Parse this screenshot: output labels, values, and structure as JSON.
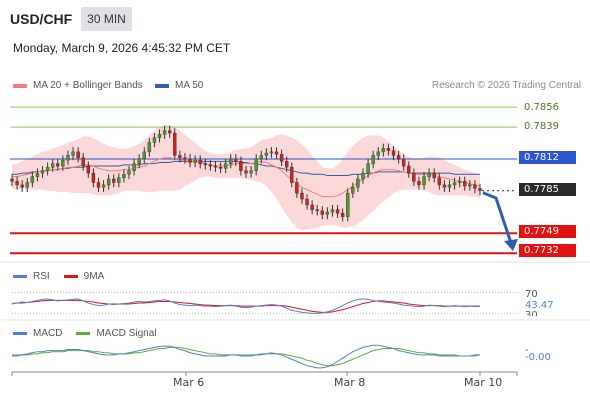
{
  "header": {
    "symbol": "USD/CHF",
    "interval": "30 MIN",
    "datetime": "Monday, March 9, 2026 4:45:32 PM CET"
  },
  "legend": {
    "ma20_label": "MA 20 + Bollinger Bands",
    "ma50_label": "MA 50",
    "credit": "Research © 2026 Trading Central"
  },
  "colors": {
    "ma20": "#f47c7c",
    "ma50": "#2f5fa8",
    "bollinger_fill": "#fbd9d9",
    "bull_candle": "#4c9a2a",
    "bear_candle": "#d21f1f",
    "resistance": "#8ec45e",
    "pivot": "#2b55d1",
    "support": "#e31212",
    "current": "#2a2a2a",
    "rsi": "#4f7fd6",
    "rsi_ma": "#e31212",
    "macd": "#4f7fd6",
    "macd_signal": "#5cb030",
    "arrow": "#2f5fa8"
  },
  "levels": [
    {
      "name": "resistance-2",
      "value": "0.7856",
      "style": "plain"
    },
    {
      "name": "resistance-1",
      "value": "0.7839",
      "style": "plain"
    },
    {
      "name": "pivot",
      "value": "0.7812",
      "style": "blue"
    },
    {
      "name": "current",
      "value": "0.7785",
      "style": "dark"
    },
    {
      "name": "support-1",
      "value": "0.7749",
      "style": "red"
    },
    {
      "name": "support-2",
      "value": "0.7732",
      "style": "red"
    }
  ],
  "rsi_panel": {
    "rsi_label": "RSI",
    "ma_label": "9MA",
    "level_70": "70",
    "value": "43.47",
    "level_30": "30"
  },
  "macd_panel": {
    "macd_label": "MACD",
    "signal_label": "MACD Signal",
    "zero_mark": "-",
    "value": "-0.00"
  },
  "x_axis": {
    "dates": [
      "Mar 6",
      "Mar 8",
      "Mar 10"
    ]
  },
  "chart_data": {
    "type": "candlestick",
    "title": "USD/CHF",
    "interval": "30 MIN",
    "y_range": [
      0.7728,
      0.7862
    ],
    "x_ticks": [
      "Mar 6",
      "Mar 8",
      "Mar 10"
    ],
    "closes": [
      0.7793,
      0.779,
      0.7788,
      0.7792,
      0.7797,
      0.78,
      0.7802,
      0.7805,
      0.7808,
      0.7806,
      0.7811,
      0.7815,
      0.7818,
      0.7813,
      0.7806,
      0.78,
      0.7792,
      0.7788,
      0.779,
      0.7795,
      0.7792,
      0.7796,
      0.7799,
      0.7802,
      0.7808,
      0.7812,
      0.7818,
      0.7826,
      0.783,
      0.7833,
      0.7836,
      0.7834,
      0.7815,
      0.7813,
      0.7812,
      0.7809,
      0.7811,
      0.7808,
      0.7807,
      0.7806,
      0.7805,
      0.7804,
      0.7808,
      0.7812,
      0.781,
      0.7802,
      0.78,
      0.7802,
      0.7812,
      0.7815,
      0.7817,
      0.7818,
      0.7816,
      0.781,
      0.7805,
      0.7792,
      0.7783,
      0.7778,
      0.7773,
      0.7769,
      0.7768,
      0.7765,
      0.7767,
      0.7769,
      0.7766,
      0.7763,
      0.7783,
      0.7788,
      0.7795,
      0.78,
      0.7808,
      0.7815,
      0.7818,
      0.7821,
      0.7819,
      0.7815,
      0.7812,
      0.7806,
      0.78,
      0.7793,
      0.779,
      0.7797,
      0.78,
      0.7796,
      0.779,
      0.7788,
      0.779,
      0.7792,
      0.7793,
      0.7789,
      0.779,
      0.7787,
      0.7785
    ],
    "ma20": [
      0.7797,
      0.7797,
      0.7798,
      0.7799,
      0.78,
      0.7801,
      0.7802,
      0.7802,
      0.7803,
      0.7803,
      0.7804,
      0.7805,
      0.7805,
      0.7806,
      0.7807,
      0.7807,
      0.7806,
      0.7804,
      0.7803,
      0.7802,
      0.7802,
      0.7802,
      0.7803,
      0.7803,
      0.7804,
      0.7805,
      0.7806,
      0.7808,
      0.781,
      0.7812,
      0.7813,
      0.7813,
      0.7812,
      0.7811,
      0.7811,
      0.781,
      0.781,
      0.7809,
      0.7808,
      0.7807,
      0.7806,
      0.7806,
      0.7806,
      0.7807,
      0.7808,
      0.7808,
      0.7808,
      0.7808,
      0.7809,
      0.781,
      0.7809,
      0.7807,
      0.7805,
      0.7802,
      0.7798,
      0.7794,
      0.7791,
      0.7788,
      0.7786,
      0.7784,
      0.7782,
      0.778,
      0.778,
      0.778,
      0.7781,
      0.7783,
      0.7786,
      0.7789,
      0.7792,
      0.7795,
      0.7798,
      0.78,
      0.7802,
      0.7803,
      0.7803,
      0.7803,
      0.7802,
      0.7801,
      0.78,
      0.7799,
      0.7799,
      0.7799,
      0.7799,
      0.7798,
      0.7797,
      0.7796,
      0.7795,
      0.7794,
      0.7793,
      0.7792,
      0.7791,
      0.779,
      0.7789
    ],
    "ma50": [
      0.7799,
      0.7799,
      0.78,
      0.78,
      0.7801,
      0.7801,
      0.7802,
      0.7802,
      0.7803,
      0.7803,
      0.7804,
      0.7804,
      0.7805,
      0.7805,
      0.7805,
      0.7806,
      0.7806,
      0.7806,
      0.7806,
      0.7806,
      0.7806,
      0.7806,
      0.7807,
      0.7807,
      0.7807,
      0.7807,
      0.7808,
      0.7808,
      0.7808,
      0.7809,
      0.7809,
      0.7809,
      0.781,
      0.781,
      0.781,
      0.781,
      0.781,
      0.781,
      0.781,
      0.781,
      0.781,
      0.781,
      0.781,
      0.781,
      0.781,
      0.7809,
      0.7809,
      0.7808,
      0.7808,
      0.7807,
      0.7806,
      0.7806,
      0.7805,
      0.7804,
      0.7803,
      0.7802,
      0.7801,
      0.78,
      0.78,
      0.7799,
      0.7799,
      0.7799,
      0.7798,
      0.7798,
      0.7798,
      0.7798,
      0.7798,
      0.7799,
      0.7799,
      0.7799,
      0.78,
      0.78,
      0.7801,
      0.7801,
      0.7801,
      0.7801,
      0.7801,
      0.7801,
      0.78,
      0.78,
      0.78,
      0.78,
      0.78,
      0.78,
      0.78,
      0.78,
      0.78,
      0.7799,
      0.7799,
      0.7799,
      0.7799,
      0.7799,
      0.7799
    ],
    "bb_half_width": [
      0.001,
      0.0011,
      0.0012,
      0.0013,
      0.0014,
      0.0015,
      0.0016,
      0.0017,
      0.0018,
      0.0019,
      0.002,
      0.0021,
      0.0022,
      0.0023,
      0.0024,
      0.0024,
      0.0024,
      0.0023,
      0.0022,
      0.0021,
      0.002,
      0.0019,
      0.0018,
      0.0018,
      0.0019,
      0.002,
      0.0022,
      0.0024,
      0.0026,
      0.0027,
      0.0028,
      0.0028,
      0.0027,
      0.0025,
      0.0022,
      0.0019,
      0.0016,
      0.0013,
      0.0011,
      0.001,
      0.001,
      0.001,
      0.001,
      0.0011,
      0.0012,
      0.0012,
      0.0013,
      0.0014,
      0.0016,
      0.0018,
      0.002,
      0.0023,
      0.0027,
      0.0031,
      0.0034,
      0.0036,
      0.0037,
      0.0036,
      0.0034,
      0.0031,
      0.0028,
      0.0025,
      0.0024,
      0.0024,
      0.0026,
      0.0029,
      0.0032,
      0.0034,
      0.0035,
      0.0035,
      0.0034,
      0.0032,
      0.003,
      0.0027,
      0.0024,
      0.002,
      0.0017,
      0.0015,
      0.0014,
      0.0013,
      0.0013,
      0.0014,
      0.0015,
      0.0016,
      0.0016,
      0.0015,
      0.0014,
      0.0013,
      0.0012,
      0.0011,
      0.0011,
      0.001,
      0.001
    ],
    "rsi": [
      48,
      50,
      52,
      51,
      53,
      55,
      57,
      58,
      56,
      54,
      55,
      56,
      57,
      58,
      54,
      50,
      47,
      45,
      46,
      48,
      47,
      48,
      49,
      50,
      52,
      53,
      52,
      53,
      54,
      55,
      56,
      54,
      50,
      47,
      46,
      45,
      46,
      45,
      44,
      44,
      43,
      44,
      45,
      46,
      44,
      42,
      41,
      42,
      44,
      45,
      46,
      47,
      46,
      44,
      40,
      36,
      34,
      32,
      31,
      30,
      30,
      31,
      33,
      36,
      40,
      45,
      50,
      54,
      57,
      58,
      57,
      55,
      53,
      52,
      51,
      50,
      48,
      46,
      45,
      44,
      43,
      44,
      46,
      45,
      44,
      43,
      44,
      45,
      44,
      43,
      44,
      43,
      43.47
    ],
    "rsi_ma": [
      49,
      50,
      50,
      51,
      52,
      53,
      54,
      55,
      55,
      55,
      55,
      55,
      55,
      55,
      54,
      53,
      52,
      50,
      49,
      48,
      48,
      48,
      48,
      48,
      49,
      50,
      50,
      51,
      52,
      53,
      53,
      53,
      52,
      51,
      50,
      49,
      48,
      47,
      46,
      46,
      45,
      45,
      45,
      45,
      45,
      44,
      44,
      44,
      44,
      44,
      45,
      45,
      45,
      45,
      44,
      42,
      40,
      38,
      36,
      34,
      33,
      32,
      32,
      33,
      35,
      37,
      40,
      43,
      46,
      49,
      51,
      53,
      54,
      54,
      53,
      52,
      51,
      50,
      48,
      47,
      46,
      45,
      45,
      45,
      45,
      44,
      44,
      44,
      44,
      44,
      44,
      44,
      44
    ],
    "macd": [
      -0.0001,
      -0.0001,
      0.0,
      0.0001,
      0.0002,
      0.0003,
      0.0003,
      0.0004,
      0.0004,
      0.0004,
      0.0004,
      0.0005,
      0.0005,
      0.0005,
      0.0004,
      0.0003,
      0.0002,
      0.0001,
      0.0,
      0.0,
      0.0,
      0.0001,
      0.0001,
      0.0002,
      0.0003,
      0.0004,
      0.0005,
      0.0006,
      0.0007,
      0.0008,
      0.0008,
      0.0008,
      0.0007,
      0.0005,
      0.0004,
      0.0002,
      0.0001,
      0.0,
      -0.0001,
      -0.0001,
      -0.0001,
      -0.0001,
      -0.0001,
      0.0,
      0.0,
      -0.0001,
      -0.0001,
      -0.0001,
      0.0,
      0.0001,
      0.0001,
      0.0002,
      0.0001,
      0.0,
      -0.0002,
      -0.0004,
      -0.0006,
      -0.0008,
      -0.001,
      -0.0011,
      -0.0012,
      -0.0012,
      -0.0011,
      -0.0009,
      -0.0006,
      -0.0003,
      0.0,
      0.0003,
      0.0005,
      0.0007,
      0.0008,
      0.0009,
      0.0009,
      0.0008,
      0.0007,
      0.0006,
      0.0004,
      0.0003,
      0.0002,
      0.0001,
      0.0,
      0.0,
      0.0,
      0.0,
      -0.0001,
      -0.0001,
      -0.0001,
      -0.0001,
      -0.0001,
      -0.0001,
      -0.0001,
      0.0,
      0.0
    ],
    "macd_signal": [
      0.0,
      0.0,
      0.0,
      0.0,
      0.0001,
      0.0001,
      0.0002,
      0.0002,
      0.0003,
      0.0003,
      0.0003,
      0.0004,
      0.0004,
      0.0004,
      0.0004,
      0.0004,
      0.0003,
      0.0003,
      0.0002,
      0.0002,
      0.0001,
      0.0001,
      0.0001,
      0.0001,
      0.0002,
      0.0002,
      0.0003,
      0.0004,
      0.0005,
      0.0006,
      0.0006,
      0.0007,
      0.0007,
      0.0007,
      0.0006,
      0.0005,
      0.0004,
      0.0003,
      0.0002,
      0.0001,
      0.0001,
      0.0,
      0.0,
      0.0,
      0.0,
      0.0,
      0.0,
      0.0,
      0.0,
      0.0,
      0.0001,
      0.0001,
      0.0001,
      0.0001,
      0.0,
      -0.0001,
      -0.0002,
      -0.0003,
      -0.0005,
      -0.0006,
      -0.0008,
      -0.0009,
      -0.001,
      -0.001,
      -0.0009,
      -0.0008,
      -0.0006,
      -0.0004,
      -0.0002,
      0.0,
      0.0002,
      0.0004,
      0.0005,
      0.0006,
      0.0006,
      0.0006,
      0.0006,
      0.0005,
      0.0004,
      0.0003,
      0.0002,
      0.0002,
      0.0001,
      0.0001,
      0.0,
      0.0,
      0.0,
      0.0,
      -0.0001,
      -0.0001,
      -0.0001,
      -0.0001,
      0.0
    ]
  }
}
